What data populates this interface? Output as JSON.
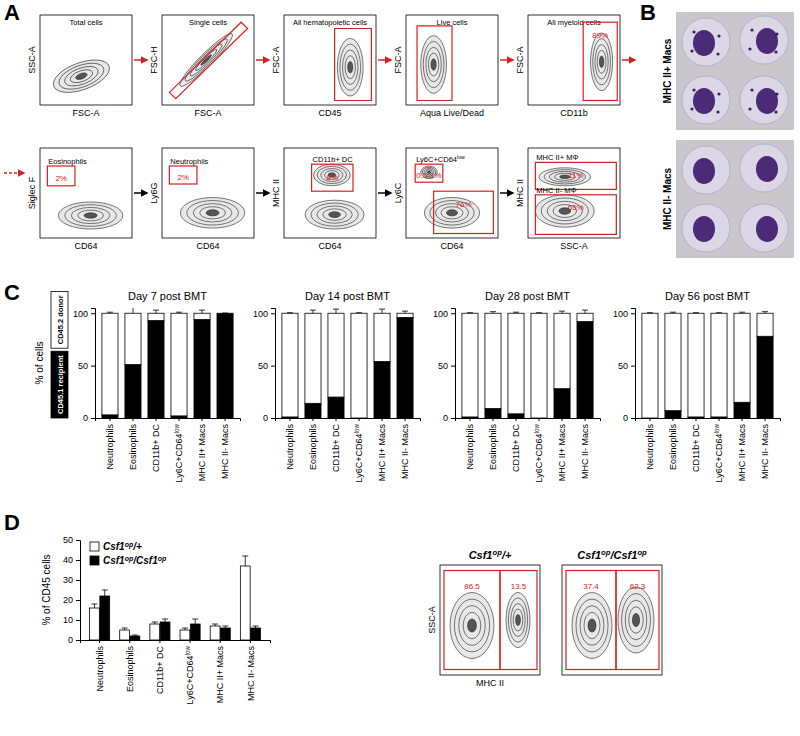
{
  "panel_labels": [
    "A",
    "B",
    "C",
    "D"
  ],
  "micrographs": {
    "labels": [
      "MHC II+ Macs",
      "MHC II- Macs"
    ]
  },
  "chart_data": [
    {
      "type": "flow",
      "title": "Total cells",
      "x_label": "FSC-A",
      "y_label": "SSC-A",
      "tick_labels": false
    },
    {
      "type": "flow",
      "title": "Single cells",
      "x_label": "FSC-A",
      "y_label": "FSC-H",
      "tick_labels": false
    },
    {
      "type": "flow",
      "title": "All hematopoietic cells",
      "x_label": "CD45",
      "y_label": "FSC-A",
      "tick_labels": false
    },
    {
      "type": "flow",
      "title": "Live cells",
      "x_label": "Aqua Live/Dead",
      "y_label": "FSC-A",
      "tick_labels": false
    },
    {
      "type": "flow",
      "title": "All myeloid cells",
      "x_label": "CD11b",
      "y_label": "FSC-A",
      "tick_labels": false,
      "gates": [
        {
          "value": 89,
          "value_label": "89%"
        }
      ]
    },
    {
      "type": "flow",
      "x_label": "CD64",
      "y_label": "Siglec F",
      "tick_labels": false,
      "gates": [
        {
          "label": "Eosinophils",
          "value": 2,
          "value_label": "2%"
        }
      ]
    },
    {
      "type": "flow",
      "x_label": "CD64",
      "y_label": "Ly6G",
      "tick_labels": false,
      "gates": [
        {
          "label": "Neutrophils",
          "value": 2,
          "value_label": "2%"
        }
      ]
    },
    {
      "type": "flow",
      "x_label": "CD64",
      "y_label": "MHC II",
      "tick_labels": false,
      "gates": [
        {
          "label": "CD11b+ DC",
          "value": 8,
          "value_label": "8%"
        }
      ]
    },
    {
      "type": "flow",
      "x_label": "CD64",
      "y_label": "Ly6C",
      "tick_labels": false,
      "gates": [
        {
          "label": "Ly6C+CD64low",
          "value_label": "0.5-1%"
        },
        {
          "value": 76,
          "value_label": "76%"
        }
      ]
    },
    {
      "type": "flow",
      "x_label": "SSC-A",
      "y_label": "MHC II",
      "tick_labels": false,
      "gates": [
        {
          "label": "MHC II+ MΦ",
          "value": 11,
          "value_label": "11%"
        },
        {
          "label": "MHC II- MΦ",
          "value": 65,
          "value_label": "65%"
        }
      ]
    },
    {
      "type": "bar",
      "stacked": true,
      "title": "Day 7 post BMT",
      "y_label": "% of cells",
      "legend": "left",
      "categories": [
        "Neutrophils",
        "Eosinophils",
        "CD11b+ DC",
        "Ly6C+CD64low",
        "MHC II+ Macs",
        "MHC II- Macs"
      ],
      "ylim": [
        0,
        105
      ],
      "yticks": [
        0,
        50,
        100
      ],
      "series": [
        {
          "name": "CD45.1 recipient",
          "color": "#000000",
          "values": [
            3,
            51,
            93,
            2,
            94,
            100
          ],
          "errors": [
            1,
            9,
            3,
            1,
            3,
            0
          ]
        },
        {
          "name": "CD45.2 donor",
          "color": "#ffffff",
          "values": [
            97,
            49,
            7,
            98,
            6,
            0
          ],
          "errors": [
            1,
            9,
            3,
            1,
            3,
            0
          ]
        }
      ]
    },
    {
      "type": "bar",
      "stacked": true,
      "title": "Day 14 post BMT",
      "categories": [
        "Neutrophils",
        "Eosinophils",
        "CD11b+ DC",
        "Ly6C+CD64low",
        "MHC II+ Macs",
        "MHC II- Macs"
      ],
      "ylim": [
        0,
        105
      ],
      "yticks": [
        0,
        50,
        100
      ],
      "series": [
        {
          "color": "#000000",
          "values": [
            1,
            14,
            20,
            0,
            54,
            96
          ],
          "errors": [
            0.5,
            3,
            4,
            0.5,
            4,
            2
          ]
        },
        {
          "color": "#ffffff",
          "values": [
            99,
            86,
            80,
            100,
            46,
            4
          ],
          "errors": [
            0.5,
            3,
            4,
            0.5,
            4,
            2
          ]
        }
      ]
    },
    {
      "type": "bar",
      "stacked": true,
      "title": "Day 28 post BMT",
      "categories": [
        "Neutrophils",
        "Eosinophils",
        "CD11b+ DC",
        "Ly6C+CD64low",
        "MHC II+ Macs",
        "MHC II- Macs"
      ],
      "ylim": [
        0,
        105
      ],
      "yticks": [
        0,
        50,
        100
      ],
      "series": [
        {
          "color": "#000000",
          "values": [
            1,
            9,
            4,
            0,
            28,
            92
          ],
          "errors": [
            0.5,
            1.5,
            1,
            0.5,
            2,
            3
          ]
        },
        {
          "color": "#ffffff",
          "values": [
            99,
            91,
            96,
            100,
            72,
            8
          ],
          "errors": [
            0.5,
            1.5,
            1,
            0.5,
            2,
            3
          ]
        }
      ]
    },
    {
      "type": "bar",
      "stacked": true,
      "title": "Day 56 post BMT",
      "categories": [
        "Neutrophils",
        "Eosinophils",
        "CD11b+ DC",
        "Ly6C+CD64low",
        "MHC II+ Macs",
        "MHC II- Macs"
      ],
      "ylim": [
        0,
        105
      ],
      "yticks": [
        0,
        50,
        100
      ],
      "series": [
        {
          "color": "#000000",
          "values": [
            0,
            7,
            1,
            1,
            15,
            78
          ],
          "errors": [
            0.5,
            1,
            0.5,
            0.5,
            1,
            1.5
          ]
        },
        {
          "color": "#ffffff",
          "values": [
            100,
            93,
            99,
            99,
            85,
            22
          ],
          "errors": [
            0.5,
            1,
            0.5,
            0.5,
            1,
            1.5
          ]
        }
      ]
    },
    {
      "type": "bar",
      "y_label": "% of CD45 cells",
      "legend": "top-left",
      "categories": [
        "Neutrophils",
        "Eosinophils",
        "CD11b+ DC",
        "Ly6C+CD64low",
        "MHC II+ Macs",
        "MHC II- Macs"
      ],
      "ylim": [
        0,
        50
      ],
      "yticks": [
        0,
        10,
        20,
        30,
        40,
        50
      ],
      "series": [
        {
          "name": "Csf1op/+",
          "color": "#ffffff",
          "values": [
            16,
            5,
            8,
            5,
            7,
            37
          ],
          "errors": [
            2,
            1,
            1,
            1,
            1,
            5
          ]
        },
        {
          "name": "Csf1op/Csf1op",
          "color": "#000000",
          "values": [
            22,
            2,
            9,
            8,
            6,
            6
          ],
          "errors": [
            3,
            0.5,
            1.5,
            2.5,
            1,
            1
          ]
        }
      ]
    },
    {
      "type": "flow",
      "title": "Csf1op/+",
      "x_label": "MHC II",
      "y_label": "SSC-A",
      "tick_labels": false,
      "gates": [
        {
          "value": 86.5
        },
        {
          "value": 13.5
        }
      ]
    },
    {
      "type": "flow",
      "title": "Csf1op/Csf1op",
      "tick_labels": false,
      "gates": [
        {
          "value": 37.4
        },
        {
          "value": 62.3
        }
      ]
    }
  ]
}
